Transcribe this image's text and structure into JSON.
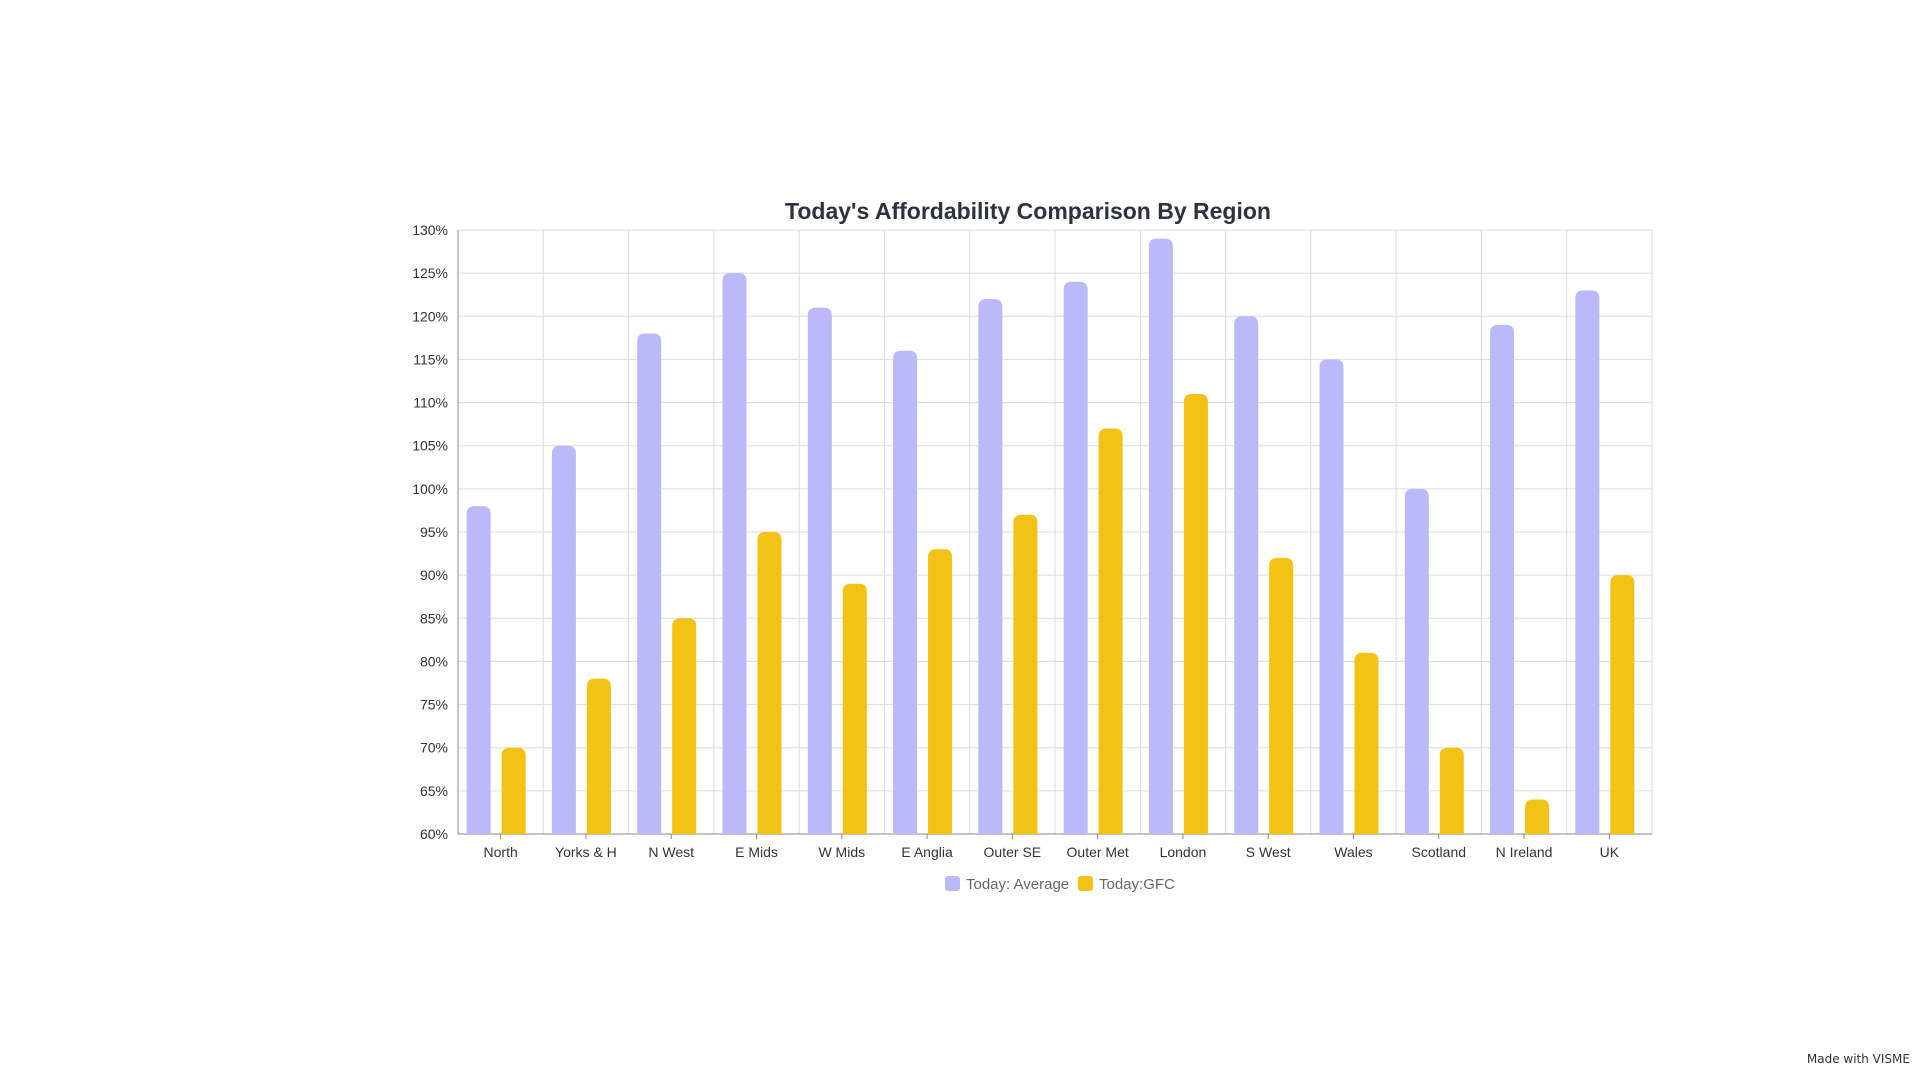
{
  "chart_data": {
    "type": "bar",
    "title": "Today's Affordability Comparison By Region",
    "xlabel": "",
    "ylabel": "",
    "ylim": [
      60,
      130
    ],
    "y_tick_step": 5,
    "y_tick_suffix": "%",
    "grid": true,
    "legend_position": "bottom",
    "categories": [
      "North",
      "Yorks & H",
      "N West",
      "E Mids",
      "W Mids",
      "E Anglia",
      "Outer SE",
      "Outer Met",
      "London",
      "S West",
      "Wales",
      "Scotland",
      "N Ireland",
      "UK"
    ],
    "series": [
      {
        "name": "Today: Average",
        "color": "#babaf9",
        "values": [
          98,
          105,
          118,
          125,
          121,
          116,
          122,
          124,
          129,
          120,
          115,
          100,
          119,
          123
        ]
      },
      {
        "name": "Today:GFC",
        "color": "#f2c214",
        "values": [
          70,
          78,
          85,
          95,
          89,
          93,
          97,
          107,
          111,
          92,
          81,
          70,
          64,
          90
        ]
      }
    ]
  },
  "watermark": "Made with VISME"
}
